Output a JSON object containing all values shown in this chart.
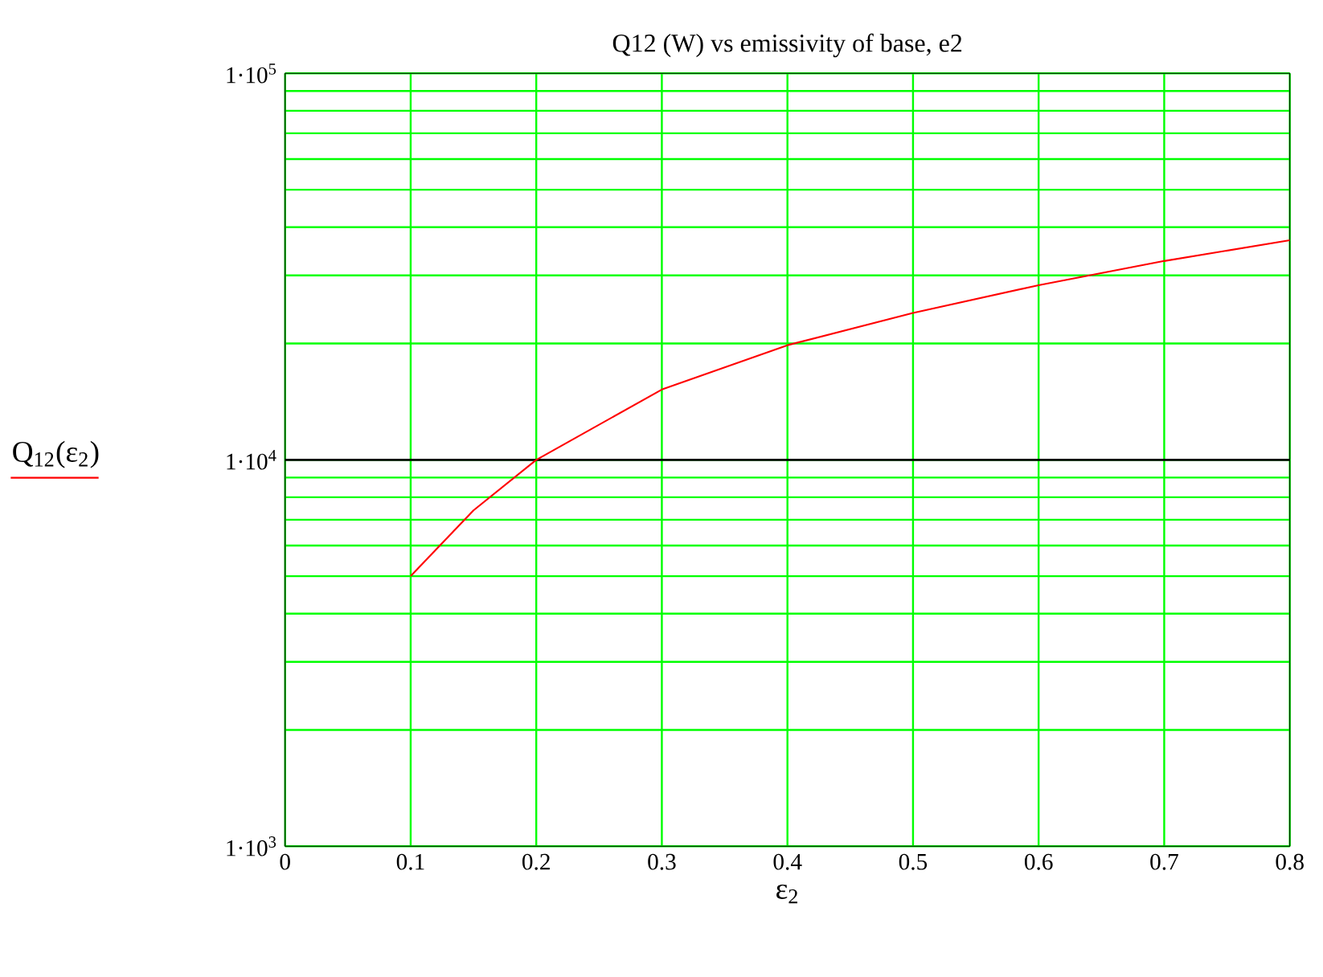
{
  "chart_data": {
    "type": "line",
    "title": "Q12 (W) vs emissivity of base, e2",
    "xlabel": "ε$_{2}$",
    "ylabel": "Q$_{12}$(ε$_{2}$)",
    "x": [
      0.1,
      0.15,
      0.2,
      0.3,
      0.4,
      0.5,
      0.6,
      0.7,
      0.8
    ],
    "series": [
      {
        "color": "#ff0000",
        "values": [
          5000,
          7400,
          10000,
          15200,
          19800,
          24000,
          28300,
          32700,
          37000
        ]
      }
    ],
    "xlim": [
      0,
      0.8
    ],
    "ylim": [
      1000,
      100000
    ],
    "xticks": [
      0,
      0.1,
      0.2,
      0.3,
      0.4,
      0.5,
      0.6,
      0.7,
      0.8
    ],
    "yticks": [
      {
        "value": 1000,
        "label": "1·10$^{3}$"
      },
      {
        "value": 10000,
        "label": "1·10$^{4}$"
      },
      {
        "value": 100000,
        "label": "1·10$^{5}$"
      }
    ],
    "log": "y",
    "grid": true,
    "ref_lines": [
      {
        "axis": "y",
        "value": 10000,
        "color": "#000000"
      }
    ]
  }
}
